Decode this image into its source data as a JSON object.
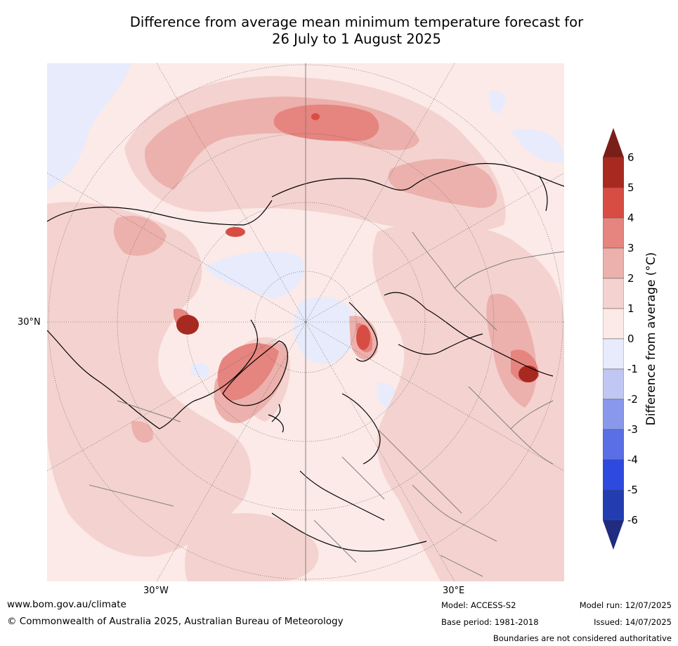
{
  "title_line1": "Difference from average mean minimum temperature forecast for",
  "title_line2": "26 July to 1 August 2025",
  "map": {
    "lat_label": "30°N",
    "lon_label_west": "30°W",
    "lon_label_east": "30°E",
    "colors": {
      "ocean_bg": "#fbeae7",
      "anom_0_1": "#fbeae7",
      "anom_1_2": "#f4d2cf",
      "anom_2_3": "#ecb1ac",
      "anom_3_4": "#e6847f",
      "anom_4_5": "#d84d43",
      "anom_5_6": "#a8291f",
      "anom_gt_6": "#7a1f18",
      "neg_0_1": "#e8ebfb",
      "coast": "#000000",
      "border": "#808080"
    }
  },
  "colorbar": {
    "title": "Difference from average (°C)",
    "ticks": [
      "6",
      "5",
      "4",
      "3",
      "2",
      "1",
      "0",
      "-1",
      "-2",
      "-3",
      "-4",
      "-5",
      "-6"
    ],
    "colors_top_to_bottom": [
      "#a8291f",
      "#d84d43",
      "#e6847f",
      "#ecb1ac",
      "#f4d2cf",
      "#fbeae7",
      "#e8ebfb",
      "#c0c7f2",
      "#8a98ec",
      "#5a6fe6",
      "#2d49de",
      "#233db0"
    ],
    "extend_max_color": "#7a1f18",
    "extend_min_color": "#1f2c80"
  },
  "footer": {
    "website": "www.bom.gov.au/climate",
    "copyright": "© Commonwealth of Australia 2025, Australian Bureau of Meteorology",
    "model": "Model: ACCESS-S2",
    "base_period": "Base period: 1981-2018",
    "model_run": "Model run: 12/07/2025",
    "issued": "Issued: 14/07/2025",
    "disclaimer": "Boundaries are not considered authoritative"
  }
}
